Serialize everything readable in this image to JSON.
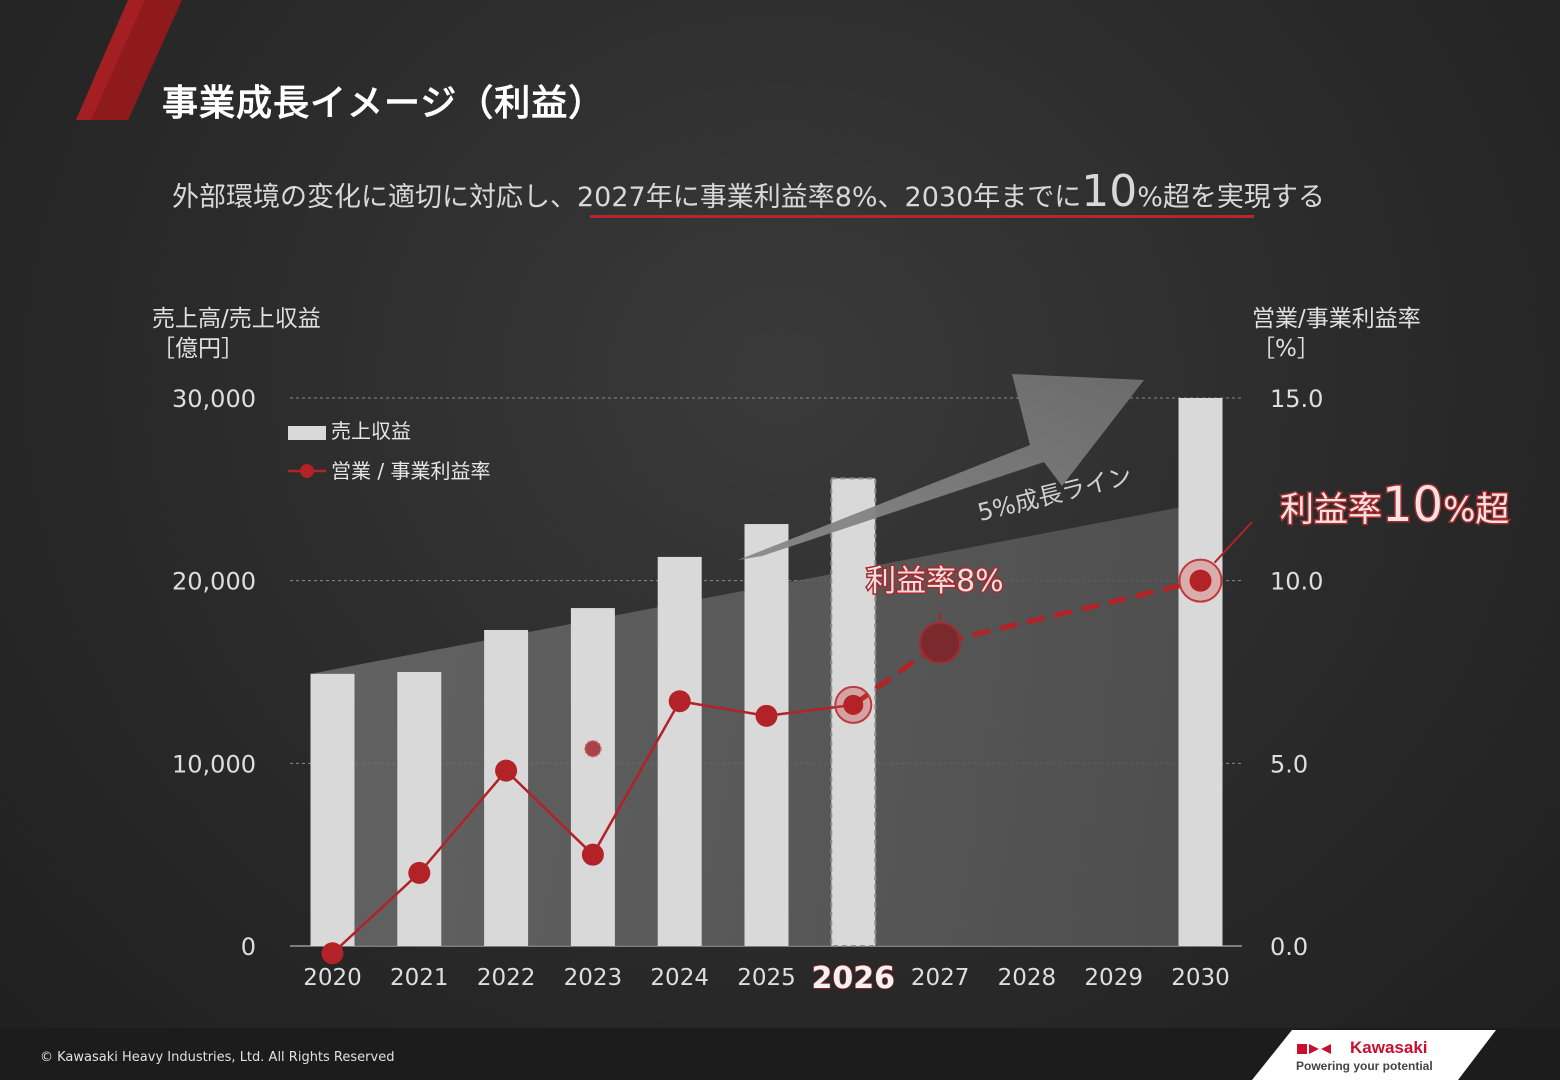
{
  "title": "事業成長イメージ（利益）",
  "subtitle": {
    "prefix": "外部環境の変化に適切に対応し、",
    "highlight": "2027年に事業利益率8%、2030年までに",
    "big": "10",
    "suffix_underlined": "%超",
    "suffix": "を実現する"
  },
  "colors": {
    "accent": "#b8262b",
    "bar": "#d9d9d9",
    "line": "#b22226",
    "background": "#2b2b2b"
  },
  "chart_data": {
    "type": "bar",
    "left_axis_title": "売上高/売上収益",
    "left_axis_unit": "［億円］",
    "right_axis_title": "営業/事業利益率",
    "right_axis_unit": "［%］",
    "categories": [
      "2020",
      "2021",
      "2022",
      "2023",
      "2024",
      "2025",
      "2026",
      "2027",
      "2028",
      "2029",
      "2030"
    ],
    "highlight_category": "2026",
    "ylim": [
      0,
      30000
    ],
    "y_ticks": [
      "0",
      "10,000",
      "20,000",
      "30,000"
    ],
    "y2lim": [
      0.0,
      15.0
    ],
    "y2_ticks": [
      "0.0",
      "5.0",
      "10.0",
      "15.0"
    ],
    "grid": true,
    "series": [
      {
        "name": "売上収益",
        "type": "bar",
        "values": [
          14900,
          15000,
          17300,
          18500,
          21300,
          23100,
          25600,
          null,
          null,
          null,
          30000
        ],
        "dashed_outline_index": 6
      },
      {
        "name": "営業 / 事業利益率",
        "type": "line",
        "axis": "right",
        "values": [
          -0.2,
          2.0,
          4.8,
          2.5,
          6.7,
          6.3,
          6.6,
          8.3,
          null,
          null,
          10.0
        ],
        "solid_until_index": 6
      }
    ],
    "outlier_marker": {
      "category": "2023",
      "value": 5.4
    },
    "growth_band": {
      "label": "5%成長ライン",
      "start": [
        2020,
        14900
      ],
      "end": [
        2030,
        24000
      ]
    },
    "annotations": [
      {
        "text": "利益率8%",
        "category": "2027"
      },
      {
        "text_prefix": "利益率",
        "text_big": "10",
        "text_suffix": "%超",
        "category": "2030"
      }
    ],
    "legend": "top-left"
  },
  "footer": {
    "copyright": "© Kawasaki Heavy Industries, Ltd. All Rights Reserved",
    "brand": "Kawasaki",
    "tagline": "Powering your potential"
  }
}
